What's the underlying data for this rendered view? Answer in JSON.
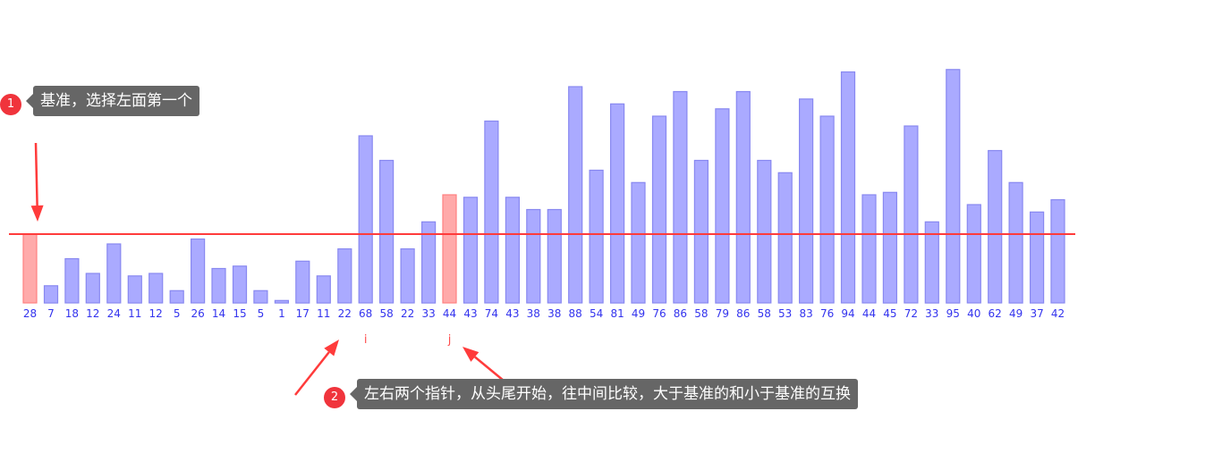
{
  "chart_data": {
    "type": "bar",
    "categories": [
      "28",
      "7",
      "18",
      "12",
      "24",
      "11",
      "12",
      "5",
      "26",
      "14",
      "15",
      "5",
      "1",
      "17",
      "11",
      "22",
      "68",
      "58",
      "22",
      "33",
      "44",
      "43",
      "74",
      "43",
      "38",
      "38",
      "88",
      "54",
      "81",
      "49",
      "76",
      "86",
      "58",
      "79",
      "86",
      "58",
      "53",
      "83",
      "76",
      "94",
      "44",
      "45",
      "72",
      "33",
      "95",
      "40",
      "62",
      "49",
      "37",
      "42"
    ],
    "values": [
      28,
      7,
      18,
      12,
      24,
      11,
      12,
      5,
      26,
      14,
      15,
      5,
      1,
      17,
      11,
      22,
      68,
      58,
      22,
      33,
      44,
      43,
      74,
      43,
      38,
      38,
      88,
      54,
      81,
      49,
      76,
      86,
      58,
      79,
      86,
      58,
      53,
      83,
      76,
      94,
      44,
      45,
      72,
      33,
      95,
      40,
      62,
      49,
      37,
      42
    ],
    "pivot_value": 28,
    "highlighted_indices": [
      0,
      20
    ],
    "pointers": [
      {
        "label": "i",
        "index": 16
      },
      {
        "label": "j",
        "index": 20
      }
    ],
    "colors": {
      "bar": "#aaaaff",
      "bar_stroke": "#8888f0",
      "highlight": "#ffaaaa",
      "highlight_stroke": "#ff8080",
      "pivot_line": "#ff3b3b",
      "tick_label": "#3333ee",
      "pointer_label": "#ff4d4d",
      "arrow": "#ff3b3b"
    },
    "ylim": [
      0,
      100
    ]
  },
  "callouts": [
    {
      "number": "1",
      "text": "基准，选择左面第一个"
    },
    {
      "number": "2",
      "text": "左右两个指针，从头尾开始，往中间比较，大于基准的和小于基准的互换"
    }
  ]
}
